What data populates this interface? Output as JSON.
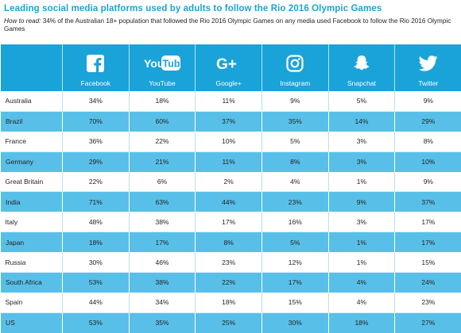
{
  "title": "Leading social media platforms used by adults to follow the Rio 2016 Olympic Games",
  "how_to_read": {
    "label": "How to read:",
    "text": " 34% of the Australian 18+ population that followed the Rio 2016 Olympic Games on any media used Facebook to follow the Rio 2016 Olympic Games"
  },
  "colors": {
    "header_bg": "#1aa3d9",
    "title": "#1aa3d9",
    "alt_row_bg": "#58c0e8"
  },
  "platforms": [
    {
      "label": "Facebook",
      "icon": "facebook-icon"
    },
    {
      "label": "YouTube",
      "icon": "youtube-icon",
      "icon_text_a": "You",
      "icon_text_b": "Tube"
    },
    {
      "label": "Google+",
      "icon": "google-plus-icon",
      "icon_text": "G+"
    },
    {
      "label": "Instagram",
      "icon": "instagram-icon"
    },
    {
      "label": "Snapchat",
      "icon": "snapchat-icon"
    },
    {
      "label": "Twitter",
      "icon": "twitter-icon"
    }
  ],
  "rows": [
    {
      "country": "Australia",
      "values": [
        "34%",
        "18%",
        "11%",
        "9%",
        "5%",
        "9%"
      ]
    },
    {
      "country": "Brazil",
      "values": [
        "70%",
        "60%",
        "37%",
        "35%",
        "14%",
        "29%"
      ]
    },
    {
      "country": "France",
      "values": [
        "36%",
        "22%",
        "10%",
        "5%",
        "3%",
        "8%"
      ]
    },
    {
      "country": "Germany",
      "values": [
        "29%",
        "21%",
        "11%",
        "8%",
        "3%",
        "10%"
      ]
    },
    {
      "country": "Great Britain",
      "values": [
        "22%",
        "6%",
        "2%",
        "4%",
        "1%",
        "9%"
      ]
    },
    {
      "country": "India",
      "values": [
        "71%",
        "63%",
        "44%",
        "23%",
        "9%",
        "37%"
      ]
    },
    {
      "country": "Italy",
      "values": [
        "48%",
        "38%",
        "17%",
        "16%",
        "3%",
        "17%"
      ]
    },
    {
      "country": "Japan",
      "values": [
        "18%",
        "17%",
        "8%",
        "5%",
        "1%",
        "17%"
      ]
    },
    {
      "country": "Russia",
      "values": [
        "30%",
        "46%",
        "23%",
        "12%",
        "1%",
        "15%"
      ]
    },
    {
      "country": "South Africa",
      "values": [
        "53%",
        "38%",
        "22%",
        "17%",
        "4%",
        "24%"
      ]
    },
    {
      "country": "Spain",
      "values": [
        "44%",
        "34%",
        "18%",
        "15%",
        "4%",
        "23%"
      ]
    },
    {
      "country": "US",
      "values": [
        "53%",
        "35%",
        "25%",
        "30%",
        "18%",
        "27%"
      ]
    }
  ]
}
